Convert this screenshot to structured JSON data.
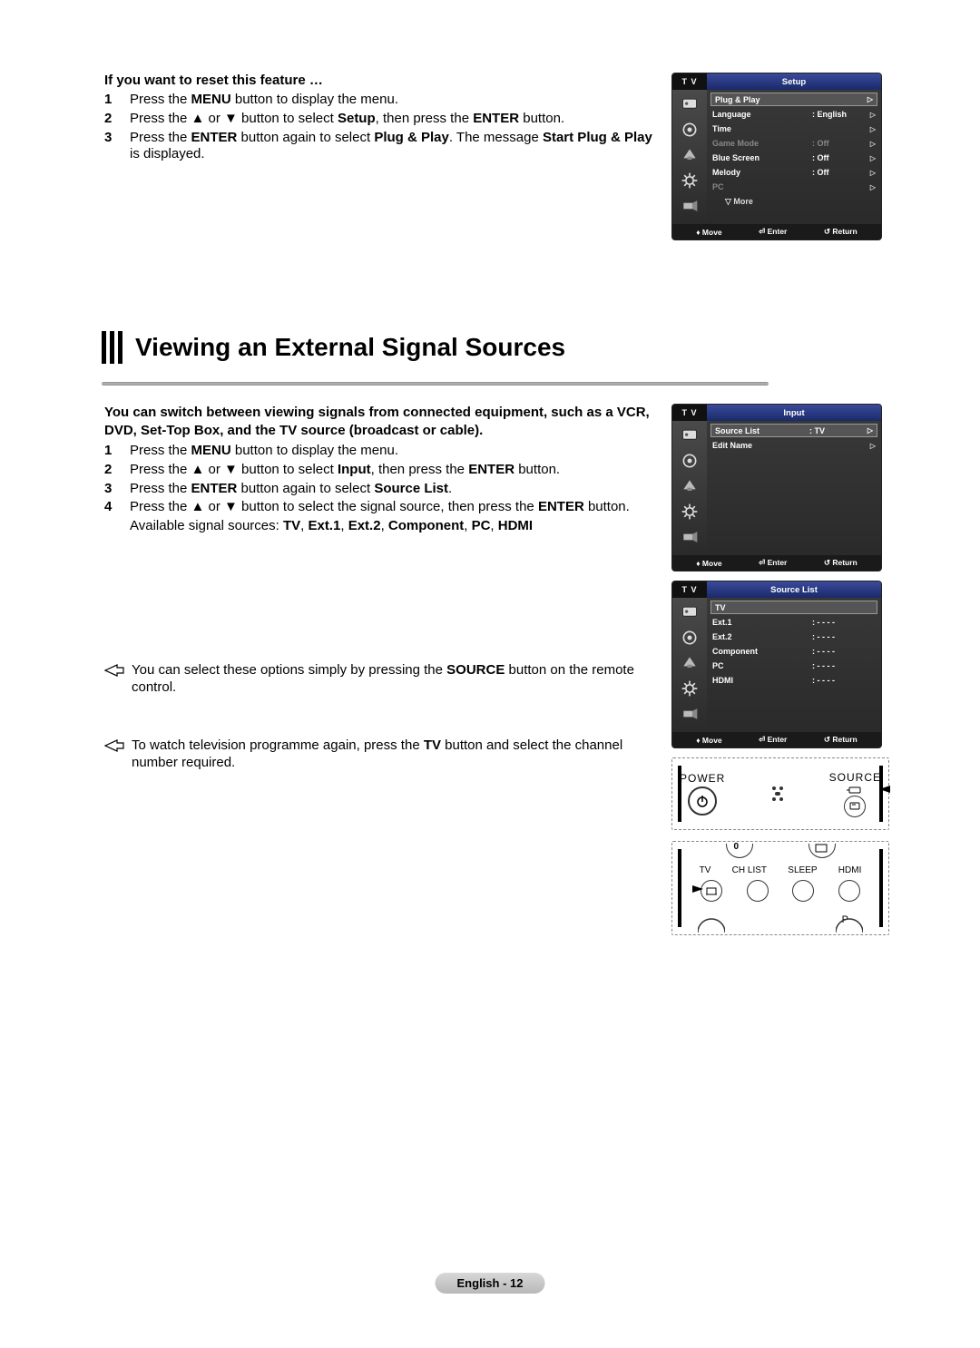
{
  "section1": {
    "intro": "If you want to reset this feature …",
    "steps": [
      {
        "n": "1",
        "html": "Press the <b>MENU</b> button to display the menu."
      },
      {
        "n": "2",
        "html": "Press the ▲ or ▼ button to select <b>Setup</b>, then press the <b>ENTER</b> button."
      },
      {
        "n": "3",
        "html": "Press the <b>ENTER</b> button again to select <b>Plug & Play</b>. The message <b>Start Plug & Play</b> is displayed."
      }
    ]
  },
  "heading": "Viewing an External Signal Sources",
  "heading_line_color_start": "#888888",
  "heading_line_color_end": "#bbbbbb",
  "section2": {
    "intro": "You can switch between viewing signals from connected equipment, such as a VCR, DVD, Set-Top Box, and the TV source (broadcast or cable).",
    "steps": [
      {
        "n": "1",
        "html": "Press the <b>MENU</b> button to display the menu."
      },
      {
        "n": "2",
        "html": "Press the ▲ or ▼ button to select <b>Input</b>, then press the <b>ENTER</b> button."
      },
      {
        "n": "3",
        "html": "Press the <b>ENTER</b> button again to select <b>Source List</b>."
      },
      {
        "n": "4",
        "html": "Press the ▲ or ▼ button to select the signal source, then press the <b>ENTER</b> button."
      }
    ],
    "available": "Available signal sources: <b>TV</b>, <b>Ext.1</b>, <b>Ext.2</b>, <b>Component</b>, <b>PC</b>, <b>HDMI</b>",
    "note1": "You can select these options simply by pressing the <b>SOURCE</b> button on the remote control.",
    "note2": "To watch television programme again, press the <b>TV</b> button and select the channel number required."
  },
  "osd_setup": {
    "tv": "T V",
    "title": "Setup",
    "title_bg_start": "#3a4a9a",
    "title_bg_end": "#1a2a6a",
    "rows": [
      {
        "label": "Plug & Play",
        "val": "",
        "selected": true
      },
      {
        "label": "Language",
        "val": ": English"
      },
      {
        "label": "Time",
        "val": ""
      },
      {
        "label": "Game Mode",
        "val": ": Off",
        "dim": true
      },
      {
        "label": "Blue Screen",
        "val": ": Off"
      },
      {
        "label": "Melody",
        "val": ": Off"
      },
      {
        "label": "PC",
        "val": "",
        "dim": true
      }
    ],
    "more": "▽ More",
    "footer": {
      "move": "Move",
      "enter": "Enter",
      "return": "Return"
    }
  },
  "osd_input": {
    "tv": "T V",
    "title": "Input",
    "rows": [
      {
        "label": "Source List",
        "val": ": TV",
        "selected": true
      },
      {
        "label": "Edit Name",
        "val": ""
      }
    ],
    "footer": {
      "move": "Move",
      "enter": "Enter",
      "return": "Return"
    }
  },
  "osd_sourcelist": {
    "tv": "T V",
    "title": "Source List",
    "rows": [
      {
        "label": "TV",
        "val": "",
        "selected": true,
        "notri": true
      },
      {
        "label": "Ext.1",
        "val": ": - - - -",
        "notri": true
      },
      {
        "label": "Ext.2",
        "val": ": - - - -",
        "notri": true
      },
      {
        "label": "Component",
        "val": ": - - - -",
        "notri": true
      },
      {
        "label": "PC",
        "val": ": - - - -",
        "notri": true
      },
      {
        "label": "HDMI",
        "val": ": - - - -",
        "notri": true
      }
    ],
    "footer": {
      "move": "Move",
      "enter": "Enter",
      "return": "Return"
    }
  },
  "remote1": {
    "power": "POWER",
    "source": "SOURCE"
  },
  "remote2": {
    "labels": [
      "TV",
      "CH LIST",
      "SLEEP",
      "HDMI"
    ],
    "p": "P"
  },
  "footer": "English - 12",
  "colors": {
    "osd_bg_start": "#555555",
    "osd_bg_end": "#333333",
    "osd_footer_bg": "#1a1a1a",
    "footer_pill_start": "#d8d8d8",
    "footer_pill_end": "#b8b8b8"
  }
}
